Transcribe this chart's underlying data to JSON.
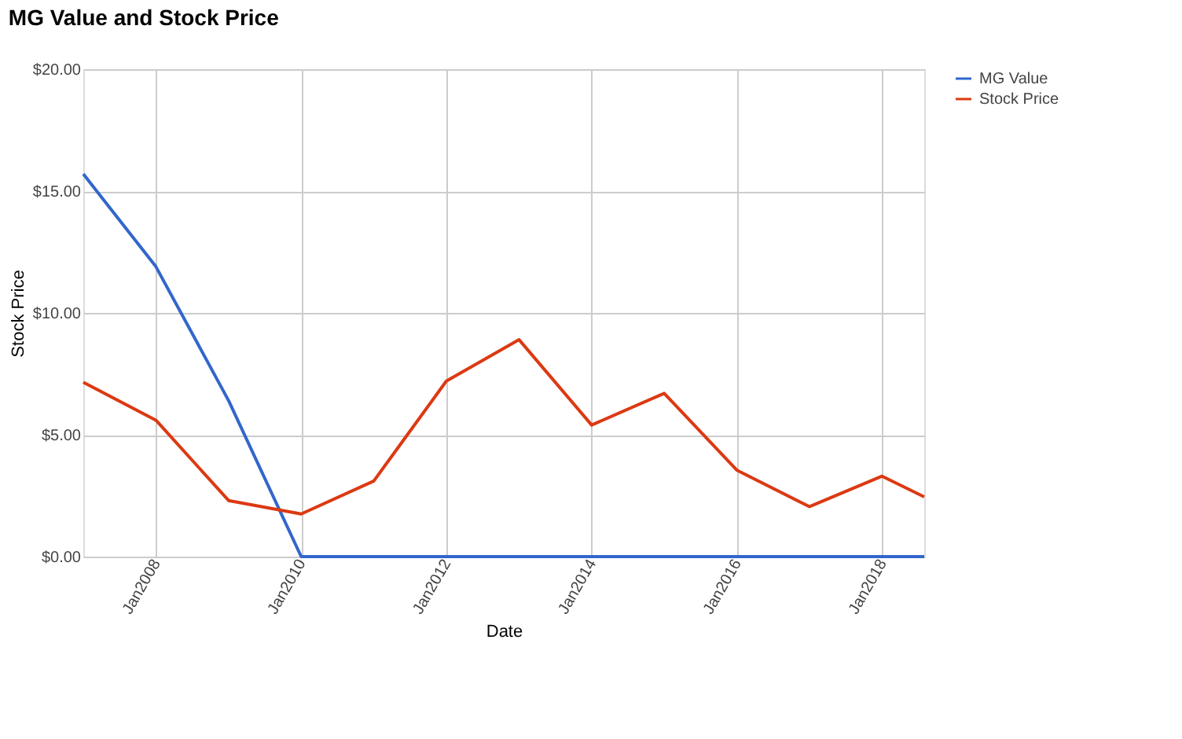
{
  "chart_data": {
    "type": "line",
    "title": "MG Value and Stock Price",
    "xlabel": "Date",
    "ylabel": "Stock Price",
    "x": [
      "2007-01",
      "2008-01",
      "2009-01",
      "2010-01",
      "2011-01",
      "2012-01",
      "2013-01",
      "2014-01",
      "2015-01",
      "2016-01",
      "2017-01",
      "2018-01",
      "2018-08"
    ],
    "series": [
      {
        "name": "MG Value",
        "color": "#3366cc",
        "values": [
          15.7,
          11.9,
          6.4,
          0,
          0,
          0,
          0,
          0,
          0,
          0,
          0,
          0,
          0
        ]
      },
      {
        "name": "Stock Price",
        "color": "#dc3912",
        "values": [
          7.15,
          5.6,
          2.3,
          1.75,
          3.1,
          7.2,
          8.9,
          5.4,
          6.7,
          3.55,
          2.05,
          3.3,
          2.45
        ]
      }
    ],
    "xlim": [
      "2007-01",
      "2018-08"
    ],
    "xticks": [
      {
        "value": "2008-01",
        "label": "Jan2008"
      },
      {
        "value": "2010-01",
        "label": "Jan2010"
      },
      {
        "value": "2012-01",
        "label": "Jan2012"
      },
      {
        "value": "2014-01",
        "label": "Jan2014"
      },
      {
        "value": "2016-01",
        "label": "Jan2016"
      },
      {
        "value": "2018-01",
        "label": "Jan2018"
      }
    ],
    "ylim": [
      0,
      20
    ],
    "yticks": [
      {
        "value": 0,
        "label": "$0.00"
      },
      {
        "value": 5,
        "label": "$5.00"
      },
      {
        "value": 10,
        "label": "$10.00"
      },
      {
        "value": 15,
        "label": "$15.00"
      },
      {
        "value": 20,
        "label": "$20.00"
      }
    ],
    "grid": true,
    "legend": "top right",
    "marker": "none",
    "line_style": "solid"
  }
}
